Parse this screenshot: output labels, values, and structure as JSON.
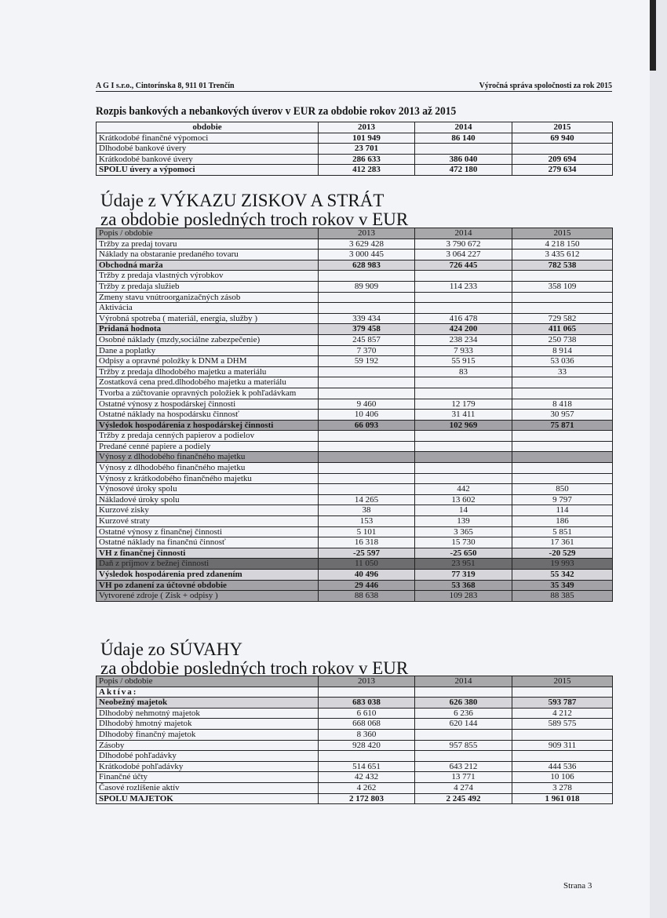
{
  "header": {
    "left": "A G I s.r.o., Cintorínska 8, 911 01 Trenčín",
    "right": "Výročná správa spoločnosti za rok 2015"
  },
  "loans": {
    "title": "Rozpis bankových a nebankových úverov v EUR za obdobie rokov 2013 až 2015",
    "rows": [
      {
        "c": [
          "obdobie",
          "2013",
          "2014",
          "2015"
        ],
        "s": "bold"
      },
      {
        "c": [
          "Krátkodobé finančné výpomoci",
          "101 949",
          "86 140",
          "69 940"
        ],
        "s": "numbold"
      },
      {
        "c": [
          "Dlhodobé bankové úvery",
          "23 701",
          "",
          ""
        ],
        "s": "numbold"
      },
      {
        "c": [
          "Krátkodobé bankové úvery",
          "286 633",
          "386 040",
          "209 694"
        ],
        "s": "numbold"
      },
      {
        "c": [
          "SPOLU úvery a výpomoci",
          "412 283",
          "472 180",
          "279 634"
        ],
        "s": "bold"
      }
    ]
  },
  "pl": {
    "title1": "Údaje z VÝKAZU ZISKOV A STRÁT",
    "title2": "za obdobie posledných troch rokov v EUR",
    "rows": [
      {
        "c": [
          "Popis / obdobie",
          "2013",
          "2014",
          "2015"
        ],
        "s": "head"
      },
      {
        "c": [
          "Tržby za predaj tovaru",
          "3 629 428",
          "3 790 672",
          "4 218 150"
        ],
        "s": ""
      },
      {
        "c": [
          "Náklady na obstaranie predaného tovaru",
          "3 000 445",
          "3 064 227",
          "3 435 612"
        ],
        "s": ""
      },
      {
        "c": [
          "Obchodná marža",
          "628 983",
          "726 445",
          "782 538"
        ],
        "s": "light"
      },
      {
        "c": [
          "Tržby z predaja vlastných výrobkov",
          "",
          "",
          ""
        ],
        "s": ""
      },
      {
        "c": [
          "Tržby z predaja služieb",
          "89 909",
          "114 233",
          "358 109"
        ],
        "s": ""
      },
      {
        "c": [
          "Zmeny stavu vnútroorganizačných zásob",
          "",
          "",
          ""
        ],
        "s": ""
      },
      {
        "c": [
          "Aktivácia",
          "",
          "",
          ""
        ],
        "s": ""
      },
      {
        "c": [
          "Výrobná spotreba ( materiál, energia, služby )",
          "339 434",
          "416 478",
          "729 582"
        ],
        "s": ""
      },
      {
        "c": [
          "Pridaná hodnota",
          "379 458",
          "424 200",
          "411 065"
        ],
        "s": "light"
      },
      {
        "c": [
          "Osobné náklady (mzdy,sociálne zabezpečenie)",
          "245 857",
          "238 234",
          "250 738"
        ],
        "s": ""
      },
      {
        "c": [
          "Dane a poplatky",
          "7 370",
          "7 933",
          "8 914"
        ],
        "s": ""
      },
      {
        "c": [
          "Odpisy a opravné položky k DNM a DHM",
          "59 192",
          "55 915",
          "53 036"
        ],
        "s": ""
      },
      {
        "c": [
          "Tržby z predaja dlhodobého majetku a materiálu",
          "",
          "83",
          "33"
        ],
        "s": ""
      },
      {
        "c": [
          "Zostatková cena pred.dlhodobého majetku a materiálu",
          "",
          "",
          ""
        ],
        "s": ""
      },
      {
        "c": [
          "Tvorba a zúčtovanie opravných položiek k pohľadávkam",
          "",
          "",
          ""
        ],
        "s": ""
      },
      {
        "c": [
          "Ostatné výnosy z hospodárskej činnosti",
          "9 460",
          "12 179",
          "8 418"
        ],
        "s": ""
      },
      {
        "c": [
          "Ostatné náklady na hospodársku činnosť",
          "10 406",
          "31 411",
          "30 957"
        ],
        "s": ""
      },
      {
        "c": [
          "Výsledok hospodárenia z hospodárskej činnosti",
          "66 093",
          "102 969",
          "75 871"
        ],
        "s": "mid"
      },
      {
        "c": [
          "Tržby z predaja cenných papierov a podielov",
          "",
          "",
          ""
        ],
        "s": ""
      },
      {
        "c": [
          "Predané cenné papiere a podiely",
          "",
          "",
          ""
        ],
        "s": ""
      },
      {
        "c": [
          "Výnosy z dlhodobého finančného majetku",
          "",
          "",
          ""
        ],
        "s": "midn"
      },
      {
        "c": [
          "Výnosy z dlhodobého finančného majetku",
          "",
          "",
          ""
        ],
        "s": ""
      },
      {
        "c": [
          "Výnosy z krátkodobého finančného majetku",
          "",
          "",
          ""
        ],
        "s": ""
      },
      {
        "c": [
          "Výnosové úroky spolu",
          "",
          "442",
          "850"
        ],
        "s": ""
      },
      {
        "c": [
          "Nákladové úroky spolu",
          "14 265",
          "13 602",
          "9 797"
        ],
        "s": ""
      },
      {
        "c": [
          "Kurzové zisky",
          "38",
          "14",
          "114"
        ],
        "s": ""
      },
      {
        "c": [
          "Kurzové straty",
          "153",
          "139",
          "186"
        ],
        "s": ""
      },
      {
        "c": [
          "Ostatné výnosy z finančnej činnosti",
          "5 101",
          "3 365",
          "5 851"
        ],
        "s": ""
      },
      {
        "c": [
          "Ostatné náklady na finančnú činnosť",
          "16 318",
          "15 730",
          "17 361"
        ],
        "s": ""
      },
      {
        "c": [
          "VH z finančnej činnosti",
          "-25 597",
          "-25 650",
          "-20 529"
        ],
        "s": "light"
      },
      {
        "c": [
          "Daň z príjmov z bežnej činnosti",
          "11 050",
          "23 951",
          "19 993"
        ],
        "s": "dark"
      },
      {
        "c": [
          "Výsledok hospodárenia pred zdanením",
          "40 496",
          "77 319",
          "55 342"
        ],
        "s": "light"
      },
      {
        "c": [
          "VH po zdanení za účtovné obdobie",
          "29 446",
          "53 368",
          "35 349"
        ],
        "s": "mid"
      },
      {
        "c": [
          "Vytvorené zdroje ( Zisk + odpisy )",
          "88 638",
          "109 283",
          "88 385"
        ],
        "s": "midn"
      }
    ]
  },
  "bs": {
    "title1": "Údaje zo SÚVAHY",
    "title2": "za obdobie posledných troch rokov v EUR",
    "rows": [
      {
        "c": [
          "Popis / obdobie",
          "2013",
          "2014",
          "2015"
        ],
        "s": "head"
      },
      {
        "c": [
          "Aktíva:",
          "",
          "",
          ""
        ],
        "s": "spaced"
      },
      {
        "c": [
          "Neobežný majetok",
          "683 038",
          "626 380",
          "593 787"
        ],
        "s": "light"
      },
      {
        "c": [
          "Dlhodobý nehmotný majetok",
          "6 610",
          "6 236",
          "4 212"
        ],
        "s": ""
      },
      {
        "c": [
          "Dlhodobý hmotný majetok",
          "668 068",
          "620 144",
          "589 575"
        ],
        "s": ""
      },
      {
        "c": [
          "Dlhodobý finančný majetok",
          "8 360",
          "",
          ""
        ],
        "s": ""
      },
      {
        "c": [
          "Zásoby",
          "928 420",
          "957 855",
          "909 311"
        ],
        "s": ""
      },
      {
        "c": [
          "Dlhodobé pohľadávky",
          "",
          "",
          ""
        ],
        "s": ""
      },
      {
        "c": [
          "Krátkodobé pohľadávky",
          "514 651",
          "643 212",
          "444 536"
        ],
        "s": ""
      },
      {
        "c": [
          "Finančné účty",
          "42 432",
          "13 771",
          "10 106"
        ],
        "s": ""
      },
      {
        "c": [
          "Časové rozlíšenie aktív",
          "4 262",
          "4 274",
          "3 278"
        ],
        "s": ""
      },
      {
        "c": [
          "SPOLU MAJETOK",
          "2 172 803",
          "2 245 492",
          "1 961 018"
        ],
        "s": "bold"
      }
    ]
  },
  "footer": {
    "page": "Strana 3"
  }
}
